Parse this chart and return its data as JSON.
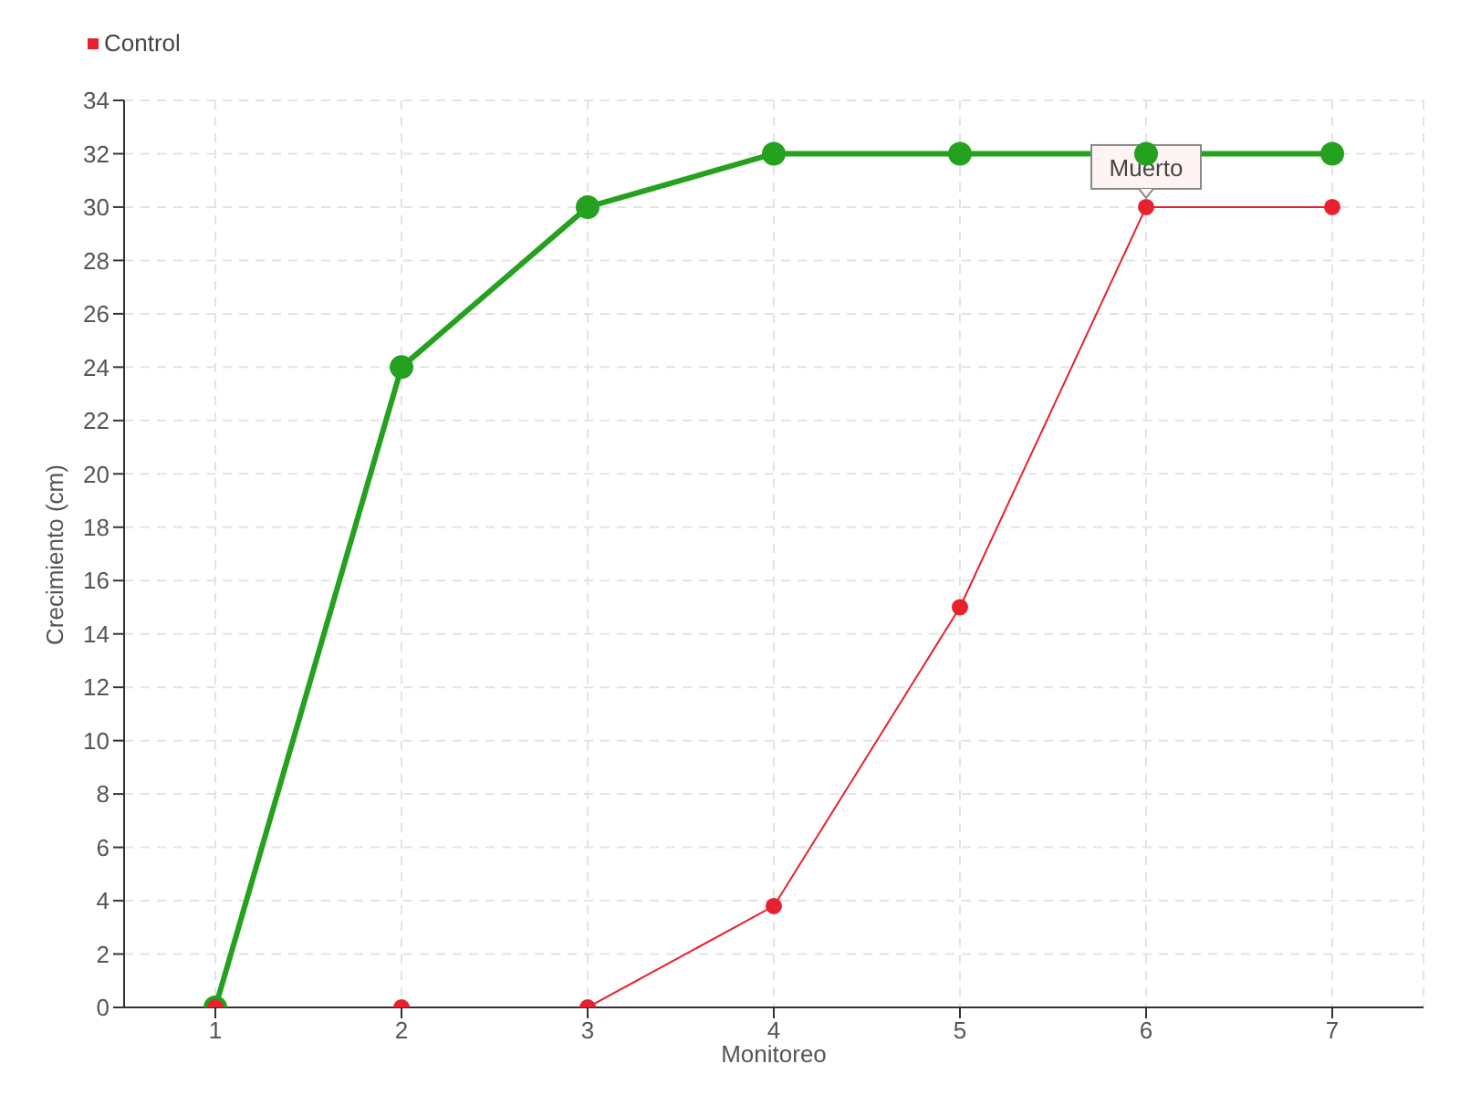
{
  "chart_data": {
    "type": "line",
    "xlabel": "Monitoreo",
    "ylabel": "Crecimiento (cm)",
    "categories": [
      "1",
      "2",
      "3",
      "4",
      "5",
      "6",
      "7"
    ],
    "series": [
      {
        "color": "#23a11f",
        "values": [
          0,
          24,
          30,
          32,
          32,
          32,
          32
        ]
      },
      {
        "name": "Control",
        "color": "#e8212f",
        "values": [
          0,
          0,
          0,
          3.8,
          15,
          30,
          30
        ]
      }
    ],
    "ylim": [
      0,
      34
    ],
    "yticks": [
      0,
      2,
      4,
      6,
      8,
      10,
      12,
      14,
      16,
      18,
      20,
      22,
      24,
      26,
      28,
      30,
      32,
      34
    ],
    "grid": true,
    "legend": "top left",
    "marker": "circle",
    "line_style": "solid",
    "annotations": [
      {
        "text": "Muerto",
        "x": "6",
        "y": 30
      }
    ]
  }
}
